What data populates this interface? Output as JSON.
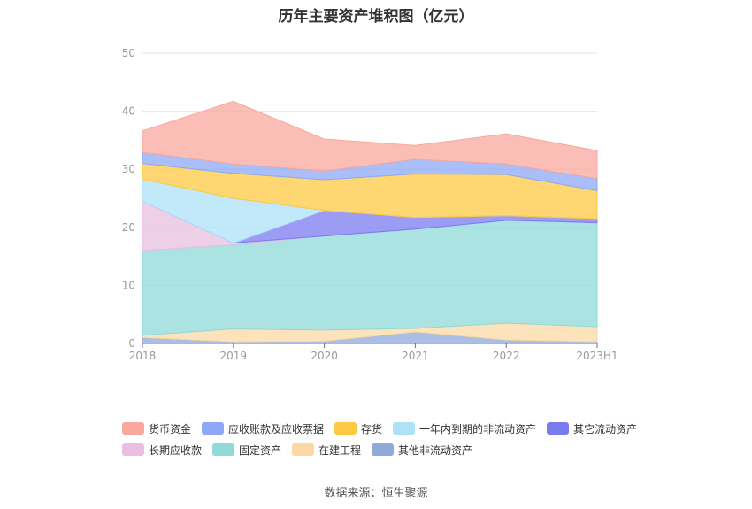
{
  "title": "历年主要资产堆积图（亿元）",
  "source": "数据来源：恒生聚源",
  "chart_data": {
    "type": "area",
    "stacked": true,
    "categories": [
      "2018",
      "2019",
      "2020",
      "2021",
      "2022",
      "2023H1"
    ],
    "ylim": [
      0,
      50
    ],
    "yticks": [
      0,
      10,
      20,
      30,
      40,
      50
    ],
    "grid": true,
    "legend_position": "bottom",
    "series": [
      {
        "name": "其他非流动资产",
        "color": "#8eaad9",
        "values": [
          1.0,
          0.3,
          0.4,
          2.0,
          0.6,
          0.3
        ]
      },
      {
        "name": "在建工程",
        "color": "#fcd9a4",
        "values": [
          0.4,
          2.2,
          1.9,
          0.6,
          2.9,
          2.6
        ]
      },
      {
        "name": "固定资产",
        "color": "#8fd9d9",
        "values": [
          14.6,
          14.5,
          16.2,
          17.1,
          17.7,
          17.9
        ]
      },
      {
        "name": "长期应收款",
        "color": "#e8bfe0",
        "values": [
          8.5,
          0.3,
          0.0,
          0.0,
          0.0,
          0.0
        ]
      },
      {
        "name": "其它流动资产",
        "color": "#7b7bf0",
        "values": [
          0.0,
          0.0,
          4.4,
          2.0,
          0.8,
          0.7
        ]
      },
      {
        "name": "一年内到期的非流动资产",
        "color": "#aee2f7",
        "values": [
          3.8,
          7.7,
          0.0,
          0.0,
          0.0,
          0.0
        ]
      },
      {
        "name": "存货",
        "color": "#fdc943",
        "values": [
          2.7,
          4.3,
          5.3,
          7.5,
          7.1,
          4.8
        ]
      },
      {
        "name": "应收账款及应收票据",
        "color": "#8ea8f7",
        "values": [
          1.9,
          1.6,
          1.5,
          2.5,
          1.8,
          2.1
        ]
      },
      {
        "name": "货币资金",
        "color": "#f9a89d",
        "values": [
          3.7,
          10.8,
          5.5,
          2.4,
          5.2,
          4.8
        ]
      }
    ]
  }
}
